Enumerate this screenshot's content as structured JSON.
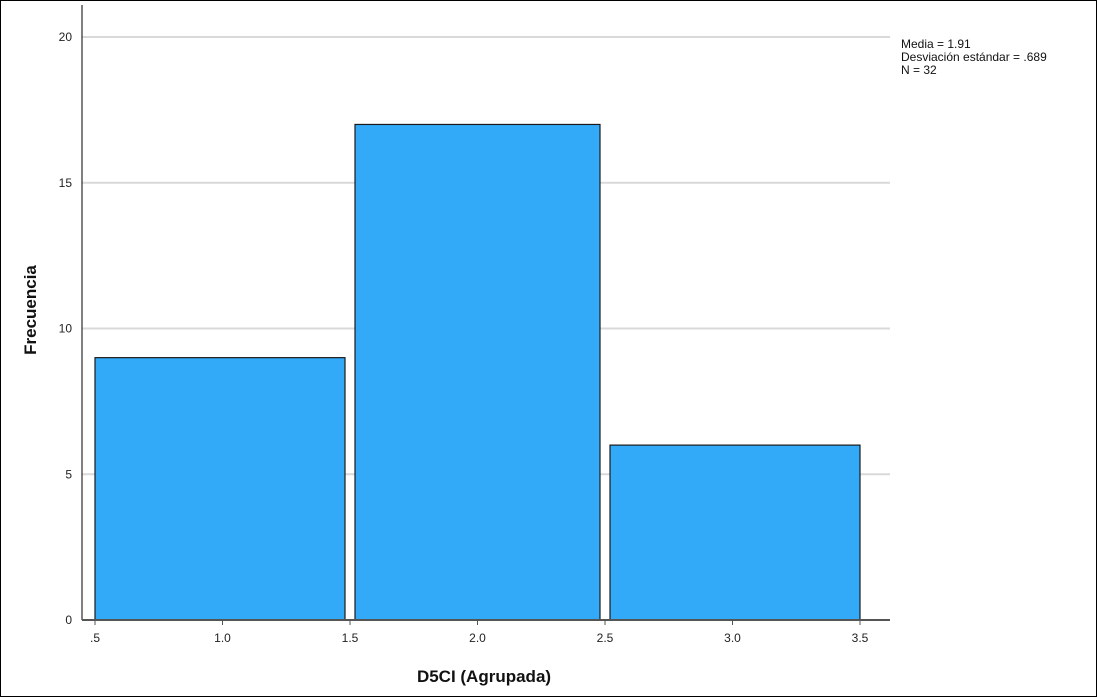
{
  "chart_data": {
    "type": "bar",
    "subtype": "histogram",
    "bins": [
      {
        "from": 0.5,
        "to": 1.5,
        "value": 9
      },
      {
        "from": 1.5,
        "to": 2.5,
        "value": 17
      },
      {
        "from": 2.5,
        "to": 3.5,
        "value": 6
      }
    ],
    "xlabel": "D5CI (Agrupada)",
    "ylabel": "Frecuencia",
    "xlim": [
      0.5,
      3.5
    ],
    "ylim": [
      0,
      20
    ],
    "x_ticks": [
      ".5",
      "1.0",
      "1.5",
      "2.0",
      "2.5",
      "3.0",
      "3.5"
    ],
    "y_ticks": [
      "0",
      "5",
      "10",
      "15",
      "20"
    ],
    "grid": "horizontal",
    "legend": "none",
    "stats": {
      "mean_text": "Media = 1.91",
      "sd_text": "Desviación estándar = .689",
      "n_text": "N = 32"
    },
    "colors": {
      "bar_fill": "#33aaf8",
      "bar_stroke": "#1a1a1a",
      "grid": "#d9d9d9",
      "axis": "#555555"
    }
  }
}
